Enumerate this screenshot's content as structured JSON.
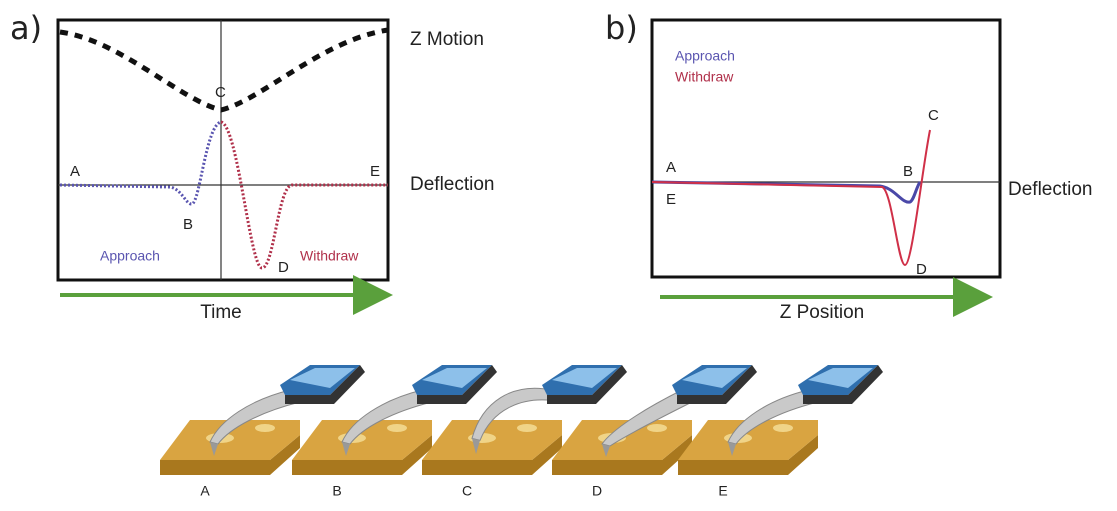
{
  "panel_a": {
    "label": "a)",
    "z_motion": "Z Motion",
    "deflection": "Deflection",
    "x_axis": "Time",
    "approach": "Approach",
    "withdraw": "Withdraw",
    "points": [
      "A",
      "B",
      "C",
      "D",
      "E"
    ]
  },
  "panel_b": {
    "label": "b)",
    "deflection": "Deflection",
    "x_axis": "Z Position",
    "approach": "Approach",
    "withdraw": "Withdraw",
    "points": [
      "A",
      "B",
      "C",
      "D",
      "E"
    ]
  },
  "illustration": {
    "labels": [
      "A",
      "B",
      "C",
      "D",
      "E"
    ]
  }
}
